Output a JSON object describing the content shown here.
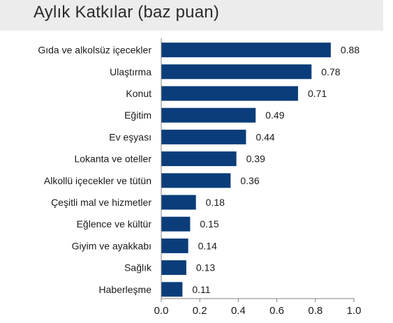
{
  "chart_data": {
    "type": "bar",
    "orientation": "horizontal",
    "title": "Aylık Katkılar (baz puan)",
    "categories": [
      "Gıda ve alkolsüz içecekler",
      "Ulaştırma",
      "Konut",
      "Eğitim",
      "Ev eşyası",
      "Lokanta ve oteller",
      "Alkollü içecekler ve tütün",
      "Çeşitli mal ve hizmetler",
      "Eğlence ve kültür",
      "Giyim ve ayakkabı",
      "Sağlık",
      "Haberleşme"
    ],
    "values": [
      0.88,
      0.78,
      0.71,
      0.49,
      0.44,
      0.39,
      0.36,
      0.18,
      0.15,
      0.14,
      0.13,
      0.11
    ],
    "value_labels": [
      "0.88",
      "0.78",
      "0.71",
      "0.49",
      "0.44",
      "0.39",
      "0.36",
      "0.18",
      "0.15",
      "0.14",
      "0.13",
      "0.11"
    ],
    "xlim": [
      0,
      1.0
    ],
    "xticks": [
      "0.0",
      "0.2",
      "0.4",
      "0.6",
      "0.8",
      "1.0"
    ],
    "xlabel": "",
    "ylabel": "",
    "grid": false,
    "legend": "none",
    "bar_color": "#0a3d7a",
    "axis_color": "#808080",
    "text_color": "#1a1a1a"
  }
}
